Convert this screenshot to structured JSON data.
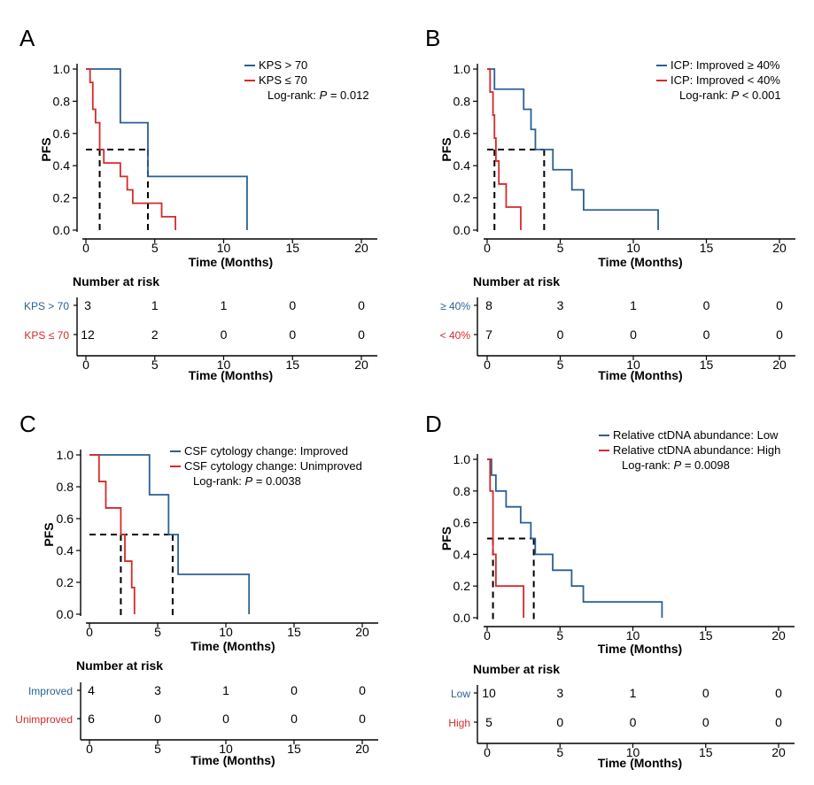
{
  "chart_data": [
    {
      "letter": "A",
      "type": "line",
      "subtype": "kaplan-meier",
      "xlabel": "Time (Months)",
      "ylabel": "PFS",
      "xlim": [
        0,
        20
      ],
      "ylim": [
        0,
        1
      ],
      "xticks": [
        0,
        5,
        10,
        15,
        20
      ],
      "yticks": [
        0.0,
        0.2,
        0.4,
        0.6,
        0.8,
        1.0
      ],
      "ytick_labels": [
        "0.0",
        "0.2",
        "0.4",
        "0.6",
        "0.8",
        "1.0"
      ],
      "legend_placement": "top-right",
      "series": [
        {
          "name": "KPS > 70",
          "color": "#2b5f94",
          "x": [
            0,
            2.5,
            4.5,
            11.7
          ],
          "y": [
            1.0,
            0.667,
            0.333,
            0.0
          ]
        },
        {
          "name": "KPS ≤ 70",
          "color": "#d52a2a",
          "x": [
            0,
            0.3,
            0.5,
            0.7,
            1.0,
            1.3,
            2.5,
            3.0,
            3.4,
            5.5,
            6.5
          ],
          "y": [
            1.0,
            0.917,
            0.75,
            0.667,
            0.5,
            0.417,
            0.333,
            0.25,
            0.167,
            0.083,
            0.0
          ]
        }
      ],
      "median_lines": {
        "y": 0.5,
        "x": [
          1.0,
          4.5
        ]
      },
      "pvalue_label": "Log-rank: ",
      "pvalue_p": "P",
      "pvalue_value": " = 0.012",
      "risk_title": "Number at risk",
      "risk_rows": [
        {
          "label": "KPS > 70",
          "color": "#2b5f94",
          "counts": [
            "3",
            "1",
            "1",
            "0",
            "0"
          ]
        },
        {
          "label": "KPS ≤ 70",
          "color": "#d52a2a",
          "counts": [
            "12",
            "2",
            "0",
            "0",
            "0"
          ]
        }
      ]
    },
    {
      "letter": "B",
      "type": "line",
      "subtype": "kaplan-meier",
      "xlabel": "Time (Months)",
      "ylabel": "PFS",
      "xlim": [
        0,
        20
      ],
      "ylim": [
        0,
        1
      ],
      "xticks": [
        0,
        5,
        10,
        15,
        20
      ],
      "yticks": [
        0.0,
        0.2,
        0.4,
        0.6,
        0.8,
        1.0
      ],
      "ytick_labels": [
        "0.0",
        "0.2",
        "0.4",
        "0.6",
        "0.8",
        "1.0"
      ],
      "legend_placement": "top-right",
      "series": [
        {
          "name": "ICP: Improved ≥ 40%",
          "color": "#2b5f94",
          "x": [
            0,
            0.5,
            2.5,
            3.0,
            3.3,
            4.5,
            5.8,
            6.6,
            11.7
          ],
          "y": [
            1.0,
            0.875,
            0.75,
            0.625,
            0.5,
            0.375,
            0.25,
            0.125,
            0.0
          ]
        },
        {
          "name": "ICP: Improved < 40%",
          "color": "#d52a2a",
          "x": [
            0,
            0.2,
            0.4,
            0.5,
            0.6,
            0.8,
            1.3,
            2.3
          ],
          "y": [
            1.0,
            0.857,
            0.714,
            0.571,
            0.429,
            0.286,
            0.143,
            0.0
          ]
        }
      ],
      "median_lines": {
        "y": 0.5,
        "x": [
          0.5,
          3.9
        ]
      },
      "pvalue_label": "Log-rank: ",
      "pvalue_p": "P",
      "pvalue_value": " < 0.001",
      "risk_title": "Number at risk",
      "risk_rows": [
        {
          "label": "≥ 40%",
          "color": "#2b5f94",
          "counts": [
            "8",
            "3",
            "1",
            "0",
            "0"
          ]
        },
        {
          "label": "< 40%",
          "color": "#d52a2a",
          "counts": [
            "7",
            "0",
            "0",
            "0",
            "0"
          ]
        }
      ]
    },
    {
      "letter": "C",
      "type": "line",
      "subtype": "kaplan-meier",
      "xlabel": "Time (Months)",
      "ylabel": "PFS",
      "xlim": [
        0,
        20
      ],
      "ylim": [
        0,
        1
      ],
      "xticks": [
        0,
        5,
        10,
        15,
        20
      ],
      "yticks": [
        0.0,
        0.2,
        0.4,
        0.6,
        0.8,
        1.0
      ],
      "ytick_labels": [
        "0.0",
        "0.2",
        "0.4",
        "0.6",
        "0.8",
        "1.0"
      ],
      "legend_placement": "top-right",
      "series": [
        {
          "name": "CSF cytology change: Improved",
          "color": "#2b5f94",
          "x": [
            0,
            4.4,
            5.8,
            6.5,
            11.7
          ],
          "y": [
            1.0,
            0.75,
            0.5,
            0.25,
            0.0
          ]
        },
        {
          "name": "CSF cytology change: Unimproved",
          "color": "#d52a2a",
          "x": [
            0,
            0.7,
            1.2,
            2.3,
            2.6,
            3.1,
            3.3
          ],
          "y": [
            1.0,
            0.833,
            0.667,
            0.5,
            0.333,
            0.167,
            0.0
          ]
        }
      ],
      "median_lines": {
        "y": 0.5,
        "x": [
          2.3,
          6.1
        ]
      },
      "pvalue_label": "Log-rank: ",
      "pvalue_p": "P",
      "pvalue_value": " = 0.0038",
      "risk_title": "Number at risk",
      "risk_rows": [
        {
          "label": "Improved",
          "color": "#2b5f94",
          "counts": [
            "4",
            "3",
            "1",
            "0",
            "0"
          ]
        },
        {
          "label": "Unimproved",
          "color": "#d52a2a",
          "counts": [
            "6",
            "0",
            "0",
            "0",
            "0"
          ]
        }
      ]
    },
    {
      "letter": "D",
      "type": "line",
      "subtype": "kaplan-meier",
      "xlabel": "Time (Months)",
      "ylabel": "PFS",
      "xlim": [
        0,
        20
      ],
      "ylim": [
        0,
        1
      ],
      "xticks": [
        0,
        5,
        10,
        15,
        20
      ],
      "yticks": [
        0.0,
        0.2,
        0.4,
        0.6,
        0.8,
        1.0
      ],
      "ytick_labels": [
        "0.0",
        "0.2",
        "0.4",
        "0.6",
        "0.8",
        "1.0"
      ],
      "legend_placement": "top-right",
      "series": [
        {
          "name": "Relative ctDNA abundance: Low",
          "color": "#2b5f94",
          "x": [
            0,
            0.3,
            0.6,
            1.3,
            2.3,
            3.0,
            3.3,
            4.5,
            5.8,
            6.6,
            12.0
          ],
          "y": [
            1.0,
            0.9,
            0.8,
            0.7,
            0.6,
            0.5,
            0.4,
            0.3,
            0.2,
            0.1,
            0.0
          ]
        },
        {
          "name": "Relative ctDNA abundance: High",
          "color": "#d52a2a",
          "x": [
            0,
            0.2,
            0.4,
            0.6,
            2.5
          ],
          "y": [
            1.0,
            0.8,
            0.4,
            0.2,
            0.0
          ]
        }
      ],
      "median_lines": {
        "y": 0.5,
        "x": [
          0.4,
          3.2
        ]
      },
      "pvalue_label": "Log-rank: ",
      "pvalue_p": "P",
      "pvalue_value": " = 0.0098",
      "risk_title": "Number at risk",
      "risk_rows": [
        {
          "label": "Low",
          "color": "#2b5f94",
          "counts": [
            "10",
            "3",
            "1",
            "0",
            "0"
          ]
        },
        {
          "label": "High",
          "color": "#d52a2a",
          "counts": [
            "5",
            "0",
            "0",
            "0",
            "0"
          ]
        }
      ]
    }
  ]
}
